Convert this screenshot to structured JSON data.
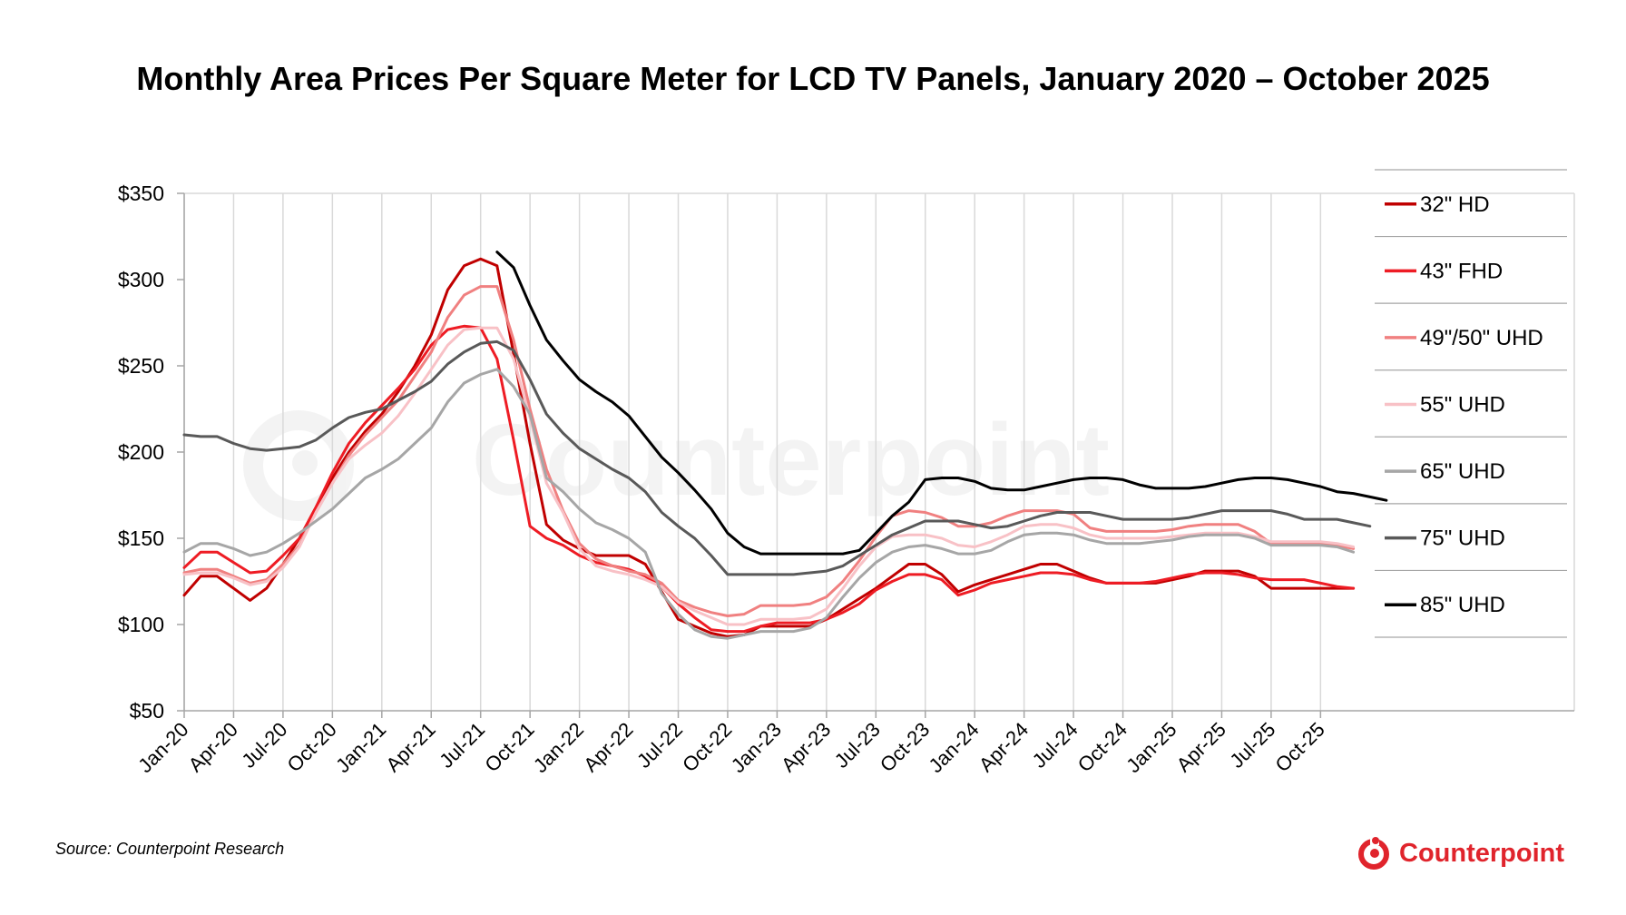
{
  "chart_data": {
    "type": "line",
    "title": "Monthly Area Prices Per Square Meter for LCD TV Panels, January 2020 – October 2025",
    "ylim": [
      50,
      350
    ],
    "y_ticks": [
      "$350",
      "$300",
      "$250",
      "$200",
      "$150",
      "$100",
      "$50"
    ],
    "y_tick_values": [
      350,
      300,
      250,
      200,
      150,
      100,
      50
    ],
    "x_tick_labels": [
      "Jan-20",
      "Apr-20",
      "Jul-20",
      "Oct-20",
      "Jan-21",
      "Apr-21",
      "Jul-21",
      "Oct-21",
      "Jan-22",
      "Apr-22",
      "Jul-22",
      "Oct-22",
      "Jan-23",
      "Apr-23",
      "Jul-23",
      "Oct-23",
      "Jan-24",
      "Apr-24",
      "Jul-24",
      "Oct-24",
      "Jan-25",
      "Apr-25",
      "Jul-25",
      "Oct-25"
    ],
    "x_tick_months": [
      0,
      3,
      6,
      9,
      12,
      15,
      18,
      21,
      24,
      27,
      30,
      33,
      36,
      39,
      42,
      45,
      48,
      51,
      54,
      57,
      60,
      63,
      66,
      69
    ],
    "grid": "vertical",
    "legend_position": "right",
    "series": [
      {
        "name": "32\" HD",
        "color": "#c00000",
        "start_month": 0,
        "values": [
          117,
          128,
          128,
          121,
          114,
          121,
          135,
          150,
          168,
          185,
          200,
          212,
          222,
          235,
          250,
          268,
          294,
          308,
          312,
          308,
          257,
          205,
          158,
          149,
          144,
          140,
          140,
          140,
          135,
          119,
          103,
          99,
          95,
          93,
          94,
          99,
          99,
          99,
          99,
          103,
          109,
          115,
          121,
          128,
          135,
          135,
          129,
          119,
          123,
          126,
          129,
          132,
          135,
          135,
          131,
          127,
          124,
          124,
          124,
          124,
          126,
          128,
          131,
          131,
          131,
          128,
          121,
          121,
          121,
          121,
          121,
          121
        ]
      },
      {
        "name": "43\" FHD",
        "color": "#ee1c24",
        "start_month": 0,
        "values": [
          133,
          142,
          142,
          136,
          130,
          131,
          140,
          150,
          168,
          188,
          205,
          217,
          227,
          237,
          248,
          262,
          271,
          273,
          272,
          254,
          207,
          157,
          150,
          146,
          140,
          136,
          134,
          132,
          128,
          122,
          112,
          104,
          97,
          96,
          96,
          99,
          101,
          101,
          101,
          103,
          107,
          112,
          120,
          125,
          129,
          129,
          126,
          117,
          120,
          124,
          126,
          128,
          130,
          130,
          129,
          126,
          124,
          124,
          124,
          125,
          127,
          129,
          130,
          130,
          129,
          127,
          126,
          126,
          126,
          124,
          122,
          121
        ]
      },
      {
        "name": "49\"/50\" UHD",
        "color": "#f08080",
        "start_month": 0,
        "values": [
          130,
          132,
          132,
          128,
          124,
          126,
          135,
          146,
          165,
          182,
          198,
          210,
          220,
          230,
          244,
          258,
          278,
          291,
          296,
          296,
          265,
          225,
          190,
          166,
          147,
          138,
          134,
          131,
          129,
          124,
          114,
          110,
          107,
          105,
          106,
          111,
          111,
          111,
          112,
          116,
          125,
          137,
          151,
          163,
          166,
          165,
          162,
          157,
          157,
          159,
          163,
          166,
          166,
          166,
          164,
          156,
          154,
          154,
          154,
          154,
          155,
          157,
          158,
          158,
          158,
          154,
          147,
          147,
          147,
          147,
          146,
          144
        ]
      },
      {
        "name": "55\" UHD",
        "color": "#f8c1c6",
        "start_month": 0,
        "values": [
          129,
          130,
          130,
          127,
          123,
          125,
          133,
          145,
          165,
          182,
          196,
          204,
          211,
          221,
          234,
          248,
          262,
          271,
          272,
          272,
          254,
          220,
          182,
          165,
          144,
          134,
          131,
          129,
          126,
          122,
          113,
          108,
          104,
          100,
          100,
          103,
          103,
          103,
          104,
          109,
          121,
          134,
          145,
          151,
          152,
          152,
          150,
          146,
          145,
          148,
          152,
          157,
          158,
          158,
          156,
          152,
          150,
          150,
          150,
          150,
          151,
          152,
          153,
          153,
          153,
          151,
          148,
          148,
          148,
          148,
          147,
          145
        ]
      },
      {
        "name": "65\" UHD",
        "color": "#a6a6a6",
        "start_month": 0,
        "values": [
          142,
          147,
          147,
          144,
          140,
          142,
          147,
          153,
          160,
          167,
          176,
          185,
          190,
          196,
          205,
          214,
          229,
          240,
          245,
          248,
          238,
          222,
          185,
          177,
          167,
          159,
          155,
          150,
          142,
          118,
          106,
          97,
          93,
          92,
          94,
          96,
          96,
          96,
          98,
          104,
          116,
          127,
          136,
          142,
          145,
          146,
          144,
          141,
          141,
          143,
          148,
          152,
          153,
          153,
          152,
          149,
          147,
          147,
          147,
          148,
          149,
          151,
          152,
          152,
          152,
          150,
          146,
          146,
          146,
          146,
          145,
          142
        ]
      },
      {
        "name": "75\" UHD",
        "color": "#595959",
        "start_month": 0,
        "values": [
          210,
          209,
          209,
          205,
          202,
          201,
          202,
          203,
          207,
          214,
          220,
          223,
          225,
          230,
          235,
          241,
          251,
          258,
          263,
          264,
          259,
          242,
          222,
          211,
          202,
          196,
          190,
          185,
          177,
          165,
          157,
          150,
          140,
          129,
          129,
          129,
          129,
          129,
          130,
          131,
          134,
          140,
          146,
          152,
          156,
          160,
          160,
          160,
          158,
          156,
          157,
          160,
          163,
          165,
          165,
          165,
          163,
          161,
          161,
          161,
          161,
          162,
          164,
          166,
          166,
          166,
          166,
          164,
          161,
          161,
          161,
          159,
          157
        ]
      },
      {
        "name": "85\" UHD",
        "color": "#000000",
        "start_month": 19,
        "values": [
          316,
          307,
          285,
          265,
          253,
          242,
          235,
          229,
          221,
          209,
          197,
          188,
          178,
          167,
          153,
          145,
          141,
          141,
          141,
          141,
          141,
          141,
          143,
          153,
          163,
          171,
          184,
          185,
          185,
          183,
          179,
          178,
          178,
          180,
          182,
          184,
          185,
          185,
          184,
          181,
          179,
          179,
          179,
          180,
          182,
          184,
          185,
          185,
          184,
          182,
          180,
          177,
          176,
          174,
          172
        ]
      }
    ]
  },
  "source": "Source: Counterpoint Research",
  "brand": "Counterpoint",
  "brand_color": "#e0242c",
  "watermark": "Counterpoint"
}
